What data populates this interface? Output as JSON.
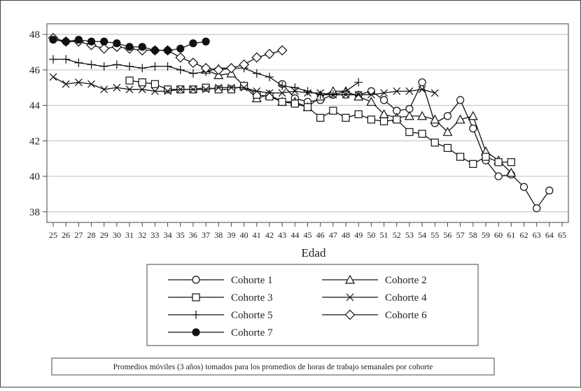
{
  "chart_data": {
    "type": "line",
    "xlabel": "Edad",
    "ylim": [
      37.4,
      48.6
    ],
    "xlim": [
      25,
      65
    ],
    "y_ticks": [
      38,
      40,
      42,
      44,
      46,
      48
    ],
    "x_ticks": [
      25,
      26,
      27,
      28,
      29,
      30,
      31,
      32,
      33,
      34,
      35,
      36,
      37,
      38,
      39,
      40,
      41,
      42,
      43,
      44,
      45,
      46,
      47,
      48,
      49,
      50,
      51,
      52,
      53,
      54,
      55,
      56,
      57,
      58,
      59,
      60,
      61,
      62,
      63,
      64,
      65
    ],
    "grid": true,
    "legend_position": "bottom",
    "note": "Promedios móviles (3 años) tomados para los promedios de horas de trabajo semanales por cohorte",
    "series": [
      {
        "name": "Cohorte 1",
        "marker": "circle-open",
        "x": [
          43,
          44,
          45,
          46,
          47,
          48,
          49,
          50,
          51,
          52,
          53,
          54,
          55,
          56,
          57,
          58,
          59,
          60,
          61,
          62,
          63,
          64
        ],
        "values": [
          45.2,
          44.4,
          44.2,
          44.3,
          44.6,
          44.6,
          44.6,
          44.8,
          44.3,
          43.7,
          43.8,
          45.3,
          43.0,
          43.4,
          44.3,
          42.7,
          40.9,
          40.0,
          40.1,
          39.4,
          38.2,
          39.2
        ]
      },
      {
        "name": "Cohorte 2",
        "marker": "triangle-open",
        "x": [
          37,
          38,
          39,
          40,
          41,
          42,
          43,
          44,
          45,
          46,
          47,
          48,
          49,
          50,
          51,
          52,
          53,
          54,
          55,
          56,
          57,
          58,
          59,
          60,
          61
        ],
        "values": [
          46.0,
          45.7,
          45.8,
          45.1,
          44.4,
          44.6,
          44.2,
          44.2,
          43.9,
          44.5,
          44.8,
          44.8,
          44.5,
          44.2,
          43.5,
          43.3,
          43.4,
          43.4,
          43.2,
          42.5,
          43.2,
          43.4,
          41.4,
          40.9,
          40.2
        ]
      },
      {
        "name": "Cohorte 3",
        "marker": "square-open",
        "x": [
          31,
          32,
          33,
          34,
          35,
          36,
          37,
          38,
          39,
          40,
          41,
          42,
          43,
          44,
          45,
          46,
          47,
          48,
          49,
          50,
          51,
          52,
          53,
          54,
          55,
          56,
          57,
          58,
          59,
          60,
          61
        ],
        "values": [
          45.4,
          45.3,
          45.2,
          44.9,
          44.9,
          44.9,
          45.0,
          44.9,
          44.9,
          45.1,
          44.6,
          44.5,
          44.2,
          44.1,
          43.9,
          43.3,
          43.7,
          43.3,
          43.5,
          43.2,
          43.1,
          43.2,
          42.5,
          42.4,
          41.9,
          41.6,
          41.1,
          40.7,
          41.1,
          40.8,
          40.8
        ]
      },
      {
        "name": "Cohorte 4",
        "marker": "x",
        "x": [
          25,
          26,
          27,
          28,
          29,
          30,
          31,
          32,
          33,
          34,
          35,
          36,
          37,
          38,
          39,
          40,
          41,
          42,
          43,
          44,
          45,
          46,
          47,
          48,
          49,
          50,
          51,
          52,
          53,
          54,
          55
        ],
        "values": [
          45.6,
          45.2,
          45.3,
          45.2,
          44.9,
          45.0,
          44.9,
          44.9,
          44.8,
          44.8,
          44.9,
          44.9,
          44.9,
          45.0,
          45.0,
          45.0,
          44.8,
          44.7,
          44.7,
          44.8,
          44.7,
          44.7,
          44.6,
          44.6,
          44.6,
          44.6,
          44.7,
          44.8,
          44.8,
          44.9,
          44.7
        ]
      },
      {
        "name": "Cohorte 5",
        "marker": "plus",
        "x": [
          25,
          26,
          27,
          28,
          29,
          30,
          31,
          32,
          33,
          34,
          35,
          36,
          37,
          38,
          39,
          40,
          41,
          42,
          43,
          44,
          45,
          46,
          47,
          48,
          49
        ],
        "values": [
          46.6,
          46.6,
          46.4,
          46.3,
          46.2,
          46.3,
          46.2,
          46.1,
          46.2,
          46.2,
          46.0,
          45.8,
          45.9,
          46.1,
          46.1,
          46.1,
          45.8,
          45.6,
          45.1,
          45.0,
          44.8,
          44.6,
          44.6,
          44.8,
          45.3
        ]
      },
      {
        "name": "Cohorte 6",
        "marker": "diamond-open",
        "x": [
          25,
          26,
          27,
          28,
          29,
          30,
          31,
          32,
          33,
          34,
          35,
          36,
          37,
          38,
          39,
          40,
          41,
          42,
          43
        ],
        "values": [
          47.8,
          47.6,
          47.6,
          47.4,
          47.2,
          47.3,
          47.2,
          47.1,
          47.1,
          47.1,
          46.7,
          46.4,
          46.1,
          46.0,
          46.1,
          46.3,
          46.7,
          46.9,
          47.1
        ]
      },
      {
        "name": "Cohorte 7",
        "marker": "circle-filled",
        "x": [
          25,
          26,
          27,
          28,
          29,
          30,
          31,
          32,
          33,
          34,
          35,
          36,
          37
        ],
        "values": [
          47.7,
          47.6,
          47.7,
          47.6,
          47.6,
          47.5,
          47.3,
          47.3,
          47.1,
          47.1,
          47.2,
          47.5,
          47.6
        ]
      }
    ]
  }
}
